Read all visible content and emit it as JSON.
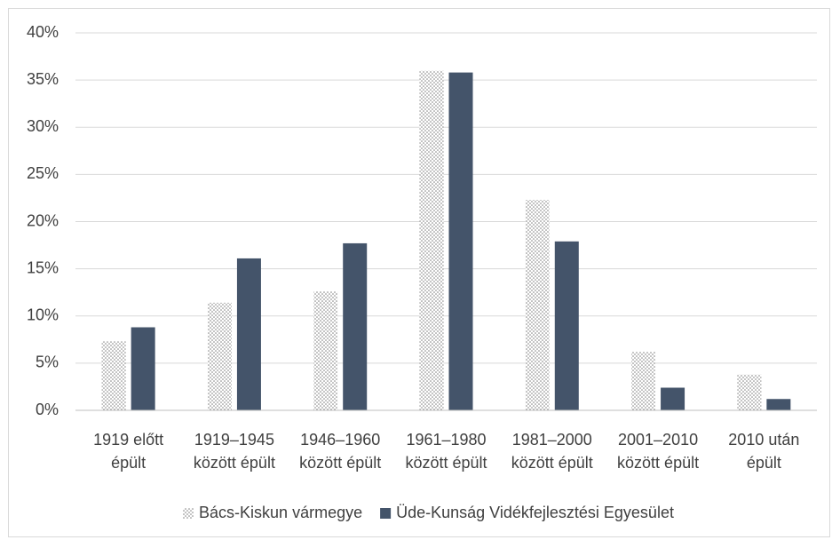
{
  "chart_data": {
    "type": "bar",
    "categories": [
      "1919 előtt épült",
      "1919–1945 között épült",
      "1946–1960 között épült",
      "1961–1980 között épült",
      "1981–2000 között épült",
      "2001–2010 között épült",
      "2010 után épült"
    ],
    "series": [
      {
        "name": "Bács-Kiskun vármegye",
        "color": "#7f7f7f",
        "pattern": "dots",
        "values": [
          7.3,
          11.4,
          12.6,
          36.0,
          22.3,
          6.2,
          3.8
        ]
      },
      {
        "name": "Üde-Kunság Vidékfejlesztési Egyesület",
        "color": "#44546a",
        "values": [
          8.8,
          16.1,
          17.7,
          35.8,
          17.9,
          2.4,
          1.2
        ]
      }
    ],
    "ylim": [
      0,
      40
    ],
    "yticks": [
      {
        "value": 0,
        "label": "0%"
      },
      {
        "value": 5,
        "label": "5%"
      },
      {
        "value": 10,
        "label": "10%"
      },
      {
        "value": 15,
        "label": "15%"
      },
      {
        "value": 20,
        "label": "20%"
      },
      {
        "value": 25,
        "label": "25%"
      },
      {
        "value": 30,
        "label": "30%"
      },
      {
        "value": 35,
        "label": "35%"
      },
      {
        "value": 40,
        "label": "40%"
      }
    ],
    "grid": true,
    "legend": "bottom"
  }
}
